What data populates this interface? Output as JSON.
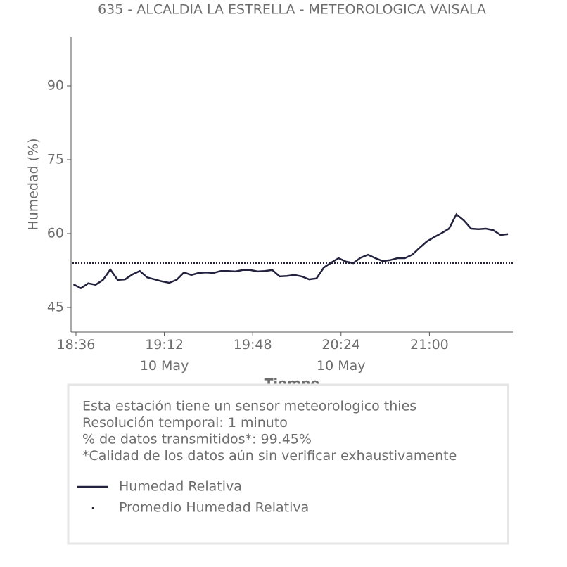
{
  "chart_data": {
    "type": "line",
    "title": "635 - ALCALDIA LA ESTRELLA - METEOROLOGICA VAISALA",
    "x_label": "Tiempo",
    "y_label": "Humedad (%)",
    "x": [
      "18:35",
      "18:38",
      "18:41",
      "18:44",
      "18:47",
      "18:50",
      "18:53",
      "18:56",
      "18:59",
      "19:02",
      "19:05",
      "19:08",
      "19:11",
      "19:14",
      "19:17",
      "19:20",
      "19:23",
      "19:26",
      "19:29",
      "19:32",
      "19:35",
      "19:38",
      "19:41",
      "19:44",
      "19:47",
      "19:50",
      "19:53",
      "19:56",
      "19:59",
      "20:02",
      "20:05",
      "20:08",
      "20:11",
      "20:14",
      "20:17",
      "20:20",
      "20:23",
      "20:26",
      "20:29",
      "20:32",
      "20:35",
      "20:38",
      "20:41",
      "20:44",
      "20:47",
      "20:50",
      "20:53",
      "20:56",
      "20:59",
      "21:02",
      "21:05",
      "21:08",
      "21:11",
      "21:14",
      "21:17",
      "21:20",
      "21:23",
      "21:26",
      "21:29",
      "21:32"
    ],
    "series": [
      {
        "name": "Humedad Relativa",
        "color": "#22223f",
        "values": [
          49.7,
          48.9,
          49.9,
          49.6,
          50.6,
          52.7,
          50.6,
          50.7,
          51.7,
          52.4,
          51.1,
          50.7,
          50.3,
          50.0,
          50.6,
          52.1,
          51.6,
          52.0,
          52.1,
          52.0,
          52.4,
          52.4,
          52.3,
          52.6,
          52.6,
          52.3,
          52.4,
          52.6,
          51.3,
          51.4,
          51.6,
          51.3,
          50.7,
          50.9,
          53.1,
          54.1,
          55.0,
          54.3,
          54.0,
          55.1,
          55.7,
          55.0,
          54.4,
          54.6,
          55.0,
          55.0,
          55.7,
          57.1,
          58.4,
          59.3,
          60.1,
          61.0,
          63.9,
          62.7,
          61.0,
          60.9,
          61.0,
          60.7,
          59.7,
          59.9
        ]
      }
    ],
    "mean": {
      "name": "Promedio Humedad Relativa",
      "color": "#22223f",
      "value": 54.0
    },
    "xlim": [
      "18:34",
      "21:34"
    ],
    "xticks": [
      "18:36",
      {
        "value": "19:12",
        "label": "19:12\n10 May"
      },
      "19:48",
      {
        "value": "20:24",
        "label": "20:24\n10 May"
      },
      "21:00"
    ],
    "ylim": [
      40,
      100
    ],
    "yticks": [
      45,
      60,
      75,
      90
    ],
    "notes": [
      "Esta estación tiene un sensor meteorologico thies",
      "Resolución temporal: 1 minuto",
      "% de datos transmitidos*: 99.45%",
      "*Calidad de los datos aún sin verificar exhaustivamente"
    ]
  }
}
